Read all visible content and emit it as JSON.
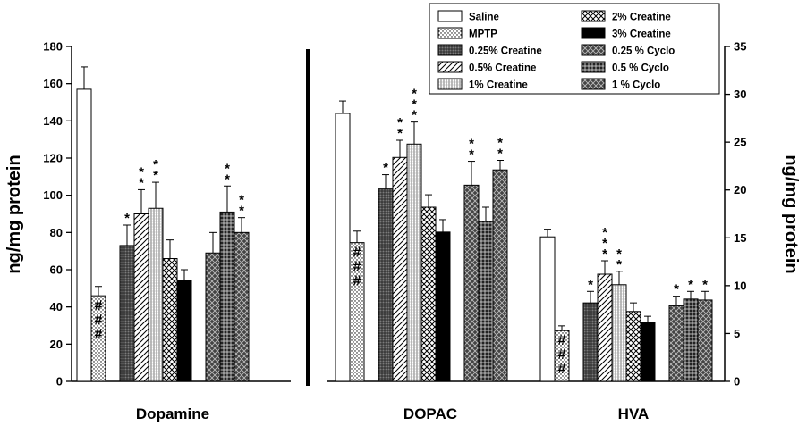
{
  "chart_data": {
    "type": "bar",
    "title": "",
    "left_axis": {
      "label": "ng/mg protein",
      "ylim": [
        0,
        180
      ],
      "ticks": [
        "0",
        "20",
        "40",
        "60",
        "80",
        "100",
        "120",
        "140",
        "160",
        "180"
      ]
    },
    "right_axis": {
      "label": "ng/mg protein",
      "ylim": [
        0,
        35
      ],
      "ticks": [
        "0",
        "5",
        "10",
        "15",
        "20",
        "25",
        "30",
        "35"
      ]
    },
    "groups": [
      {
        "name": "Dopamine",
        "axis": "left",
        "values": [
          157,
          46,
          73,
          90,
          93,
          66,
          54,
          69,
          91,
          80
        ],
        "errors": [
          12,
          5,
          11,
          13,
          14,
          10,
          6,
          11,
          14,
          8
        ],
        "marks": [
          "",
          "###",
          "*",
          "**",
          "**",
          "",
          "",
          "",
          "**",
          "**"
        ]
      },
      {
        "name": "DOPAC",
        "axis": "right",
        "values": [
          28,
          14.5,
          20.1,
          23.4,
          24.8,
          18.2,
          15.6,
          20.5,
          16.7,
          22.1
        ],
        "errors": [
          1.3,
          1.2,
          1.5,
          1.8,
          2.3,
          1.3,
          1.3,
          2.5,
          1.5,
          1.0
        ],
        "marks": [
          "",
          "###",
          "*",
          "**",
          "***",
          "",
          "",
          "**",
          "",
          "**"
        ]
      },
      {
        "name": "HVA",
        "axis": "right",
        "values": [
          15.1,
          5.3,
          8.2,
          11.2,
          10.1,
          7.3,
          6.2,
          7.9,
          8.6,
          8.5
        ],
        "errors": [
          0.8,
          0.5,
          1.2,
          1.4,
          1.4,
          0.9,
          0.6,
          1.0,
          0.8,
          0.9
        ],
        "marks": [
          "",
          "###",
          "*",
          "***",
          "**",
          "",
          "",
          "*",
          "*",
          "*"
        ]
      }
    ],
    "legend": {
      "placement": "top-right",
      "entries": [
        "Saline",
        "MPTP",
        "0.25% Creatine",
        "0.5% Creatine",
        "1% Creatine",
        "2% Creatine",
        "3% Creatine",
        "0.25 % Cyclo",
        "0.5 % Cyclo",
        "1 % Cyclo"
      ]
    },
    "colors": {
      "bar_outline": "#000000",
      "background": "#ffffff",
      "solid": "#000000"
    }
  }
}
